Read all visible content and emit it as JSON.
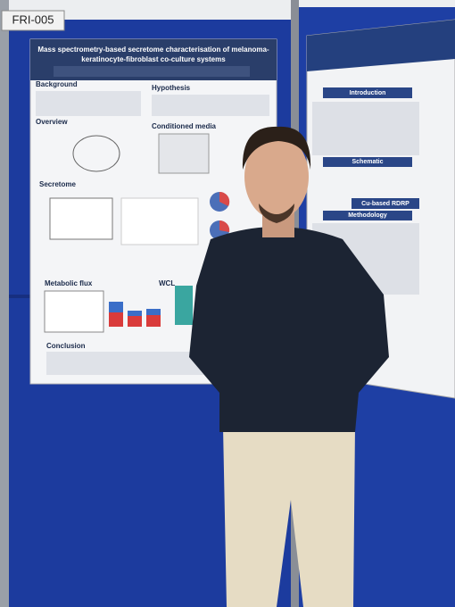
{
  "board_label": "FRI-005",
  "left_poster": {
    "title_lines": [
      "Mass spectrometry-based secretome characterisation of melanoma-",
      "keratinocyte-fibroblast co-culture systems"
    ],
    "sections": [
      "Background",
      "Hypothesis",
      "Overview",
      "Conditioned media",
      "Secretome",
      "Metabolic flux",
      "WCL",
      "Conclusion"
    ]
  },
  "right_poster": {
    "sections": [
      "Introduction",
      "Schematic",
      "Methodology",
      "Cu-based RDRP"
    ]
  }
}
